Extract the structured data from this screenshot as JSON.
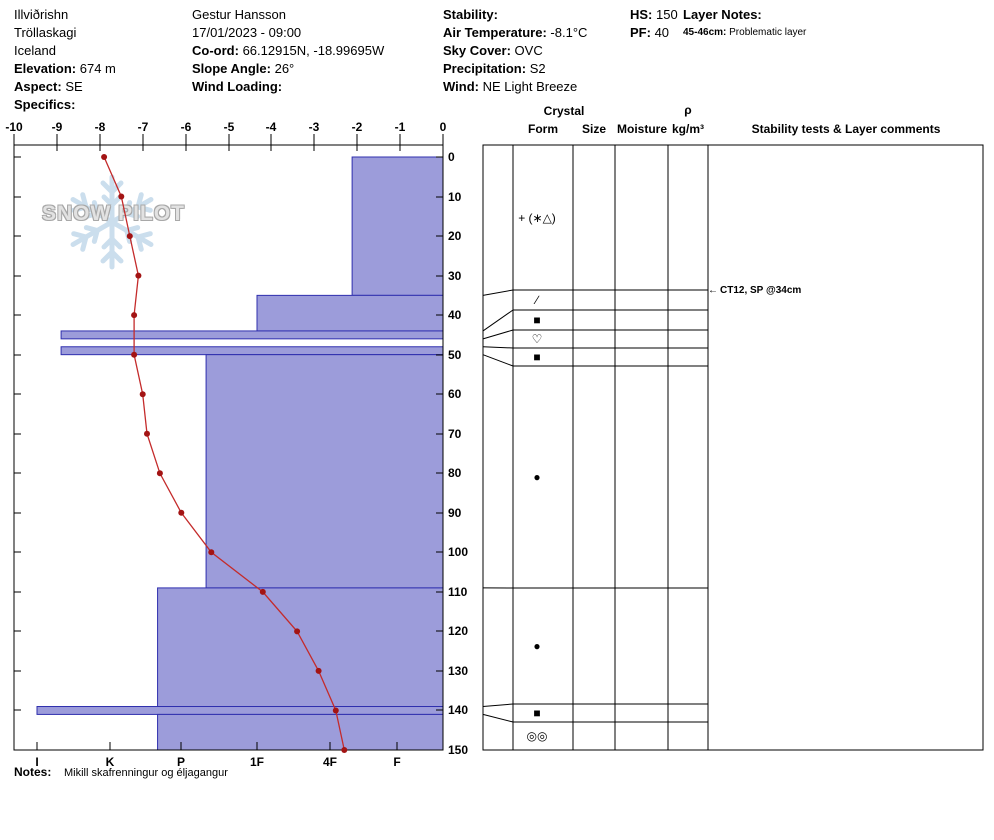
{
  "header": {
    "location": {
      "name": "Illviðrishn",
      "region": "Tröllaskagi",
      "country": "Iceland",
      "elevation_label": "Elevation:",
      "elevation_value": "674 m",
      "aspect_label": "Aspect:",
      "aspect_value": "SE",
      "specifics_label": "Specifics:",
      "specifics_value": ""
    },
    "observer": {
      "name": "Gestur Hansson",
      "datetime": "17/01/2023 - 09:00",
      "coord_label": "Co-ord:",
      "coord_value": "66.12915N, -18.99695W",
      "slope_angle_label": "Slope Angle:",
      "slope_angle_value": "26°",
      "wind_loading_label": "Wind Loading:",
      "wind_loading_value": ""
    },
    "conditions": {
      "stability_label": "Stability:",
      "stability_value": "",
      "air_temp_label": "Air Temperature:",
      "air_temp_value": "-8.1°C",
      "sky_cover_label": "Sky Cover:",
      "sky_cover_value": "OVC",
      "precipitation_label": "Precipitation:",
      "precipitation_value": "S2",
      "wind_label": "Wind:",
      "wind_value": "NE Light Breeze"
    },
    "totals": {
      "hs_label": "HS:",
      "hs_value": "150",
      "pf_label": "PF:",
      "pf_value": "40"
    },
    "layer_notes": {
      "title": "Layer Notes:",
      "entry_label": "45-46cm:",
      "entry_text": "Problematic layer"
    }
  },
  "watermark": {
    "text": "SNOW PILOT"
  },
  "panel_header": {
    "crystal": "Crystal",
    "form": "Form",
    "size": "Size",
    "moisture": "Moisture",
    "density_symbol": "ρ",
    "density_units": "kg/m³",
    "comments": "Stability tests & Layer comments"
  },
  "annotation": {
    "arrow": "←",
    "text": "CT12, SP @34cm"
  },
  "notes": {
    "label": "Notes:",
    "text": "Mikill skafrenningur og éljagangur"
  },
  "chart_data": {
    "type": "snow-profile",
    "temperature_axis": {
      "unit": "°C",
      "range": [
        -10,
        0
      ],
      "ticks": [
        -10,
        -9,
        -8,
        -7,
        -6,
        -5,
        -4,
        -3,
        -2,
        -1,
        0
      ]
    },
    "depth_axis": {
      "unit": "cm",
      "range": [
        0,
        150
      ],
      "ticks": [
        0,
        10,
        20,
        30,
        40,
        50,
        60,
        70,
        80,
        90,
        100,
        110,
        120,
        130,
        140,
        150
      ]
    },
    "hardness_axis": {
      "labels": [
        "I",
        "K",
        "P",
        "1F",
        "4F",
        "F"
      ]
    },
    "snow_height_cm": 150,
    "layers": [
      {
        "top_cm": 0,
        "bottom_cm": 35,
        "hardness": "4F-"
      },
      {
        "top_cm": 35,
        "bottom_cm": 44,
        "hardness": "1F"
      },
      {
        "top_cm": 44,
        "bottom_cm": 46,
        "hardness": "I-"
      },
      {
        "top_cm": 46,
        "bottom_cm": 48,
        "hardness": ""
      },
      {
        "top_cm": 48,
        "bottom_cm": 50,
        "hardness": "I-"
      },
      {
        "top_cm": 50,
        "bottom_cm": 109,
        "hardness": "P-"
      },
      {
        "top_cm": 109,
        "bottom_cm": 139,
        "hardness": "P+"
      },
      {
        "top_cm": 139,
        "bottom_cm": 141,
        "hardness": "I"
      },
      {
        "top_cm": 141,
        "bottom_cm": 150,
        "hardness": "P+"
      }
    ],
    "temperature_profile": [
      {
        "depth_cm": 0,
        "temp_c": -7.9
      },
      {
        "depth_cm": 10,
        "temp_c": -7.5
      },
      {
        "depth_cm": 20,
        "temp_c": -7.3
      },
      {
        "depth_cm": 30,
        "temp_c": -7.1
      },
      {
        "depth_cm": 40,
        "temp_c": -7.2
      },
      {
        "depth_cm": 50,
        "temp_c": -7.2
      },
      {
        "depth_cm": 60,
        "temp_c": -7.0
      },
      {
        "depth_cm": 70,
        "temp_c": -6.9
      },
      {
        "depth_cm": 80,
        "temp_c": -6.6
      },
      {
        "depth_cm": 90,
        "temp_c": -6.1
      },
      {
        "depth_cm": 100,
        "temp_c": -5.4
      },
      {
        "depth_cm": 110,
        "temp_c": -4.2
      },
      {
        "depth_cm": 120,
        "temp_c": -3.4
      },
      {
        "depth_cm": 130,
        "temp_c": -2.9
      },
      {
        "depth_cm": 140,
        "temp_c": -2.5
      },
      {
        "depth_cm": 150,
        "temp_c": -2.3
      }
    ],
    "crystal_forms": [
      {
        "layer_top_cm": 0,
        "layer_bottom_cm": 35,
        "symbol": "+ (∗△)"
      },
      {
        "layer_top_cm": 35,
        "layer_bottom_cm": 44,
        "symbol": "∕"
      },
      {
        "layer_top_cm": 44,
        "layer_bottom_cm": 46,
        "symbol": "■"
      },
      {
        "layer_top_cm": 46,
        "layer_bottom_cm": 48,
        "symbol": "♡"
      },
      {
        "layer_top_cm": 48,
        "layer_bottom_cm": 50,
        "symbol": "■"
      },
      {
        "layer_top_cm": 50,
        "layer_bottom_cm": 109,
        "symbol": "●"
      },
      {
        "layer_top_cm": 109,
        "layer_bottom_cm": 139,
        "symbol": "●"
      },
      {
        "layer_top_cm": 139,
        "layer_bottom_cm": 141,
        "symbol": "■"
      },
      {
        "layer_top_cm": 141,
        "layer_bottom_cm": 150,
        "symbol": "◎◎"
      }
    ],
    "colors": {
      "layer_fill": "#9c9cda",
      "layer_border": "#2f2fae",
      "temp_line": "#c42b2b",
      "temp_dot": "#a31414"
    }
  }
}
